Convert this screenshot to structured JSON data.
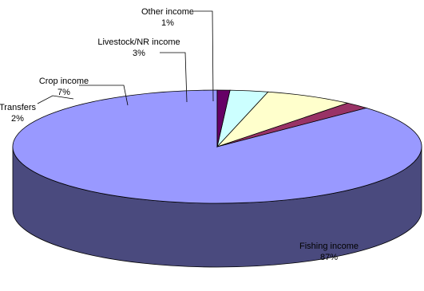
{
  "chart_data": {
    "type": "pie",
    "style": "3d",
    "title": "",
    "slices": [
      {
        "name": "Fishing income",
        "value": 87,
        "value_label": "87%",
        "color": "#9999ff",
        "side_color": "#4a4a7e"
      },
      {
        "name": "Transfers",
        "value": 2,
        "value_label": "2%",
        "color": "#993366",
        "side_color": "#4f1a34"
      },
      {
        "name": "Crop income",
        "value": 7,
        "value_label": "7%",
        "color": "#ffffcc",
        "side_color": "#8a8a66"
      },
      {
        "name": "Livestock/NR income",
        "value": 3,
        "value_label": "3%",
        "color": "#ccffff",
        "side_color": "#668a8a"
      },
      {
        "name": "Other income",
        "value": 1,
        "value_label": "1%",
        "color": "#660066",
        "side_color": "#330033"
      }
    ],
    "legend": "none"
  }
}
